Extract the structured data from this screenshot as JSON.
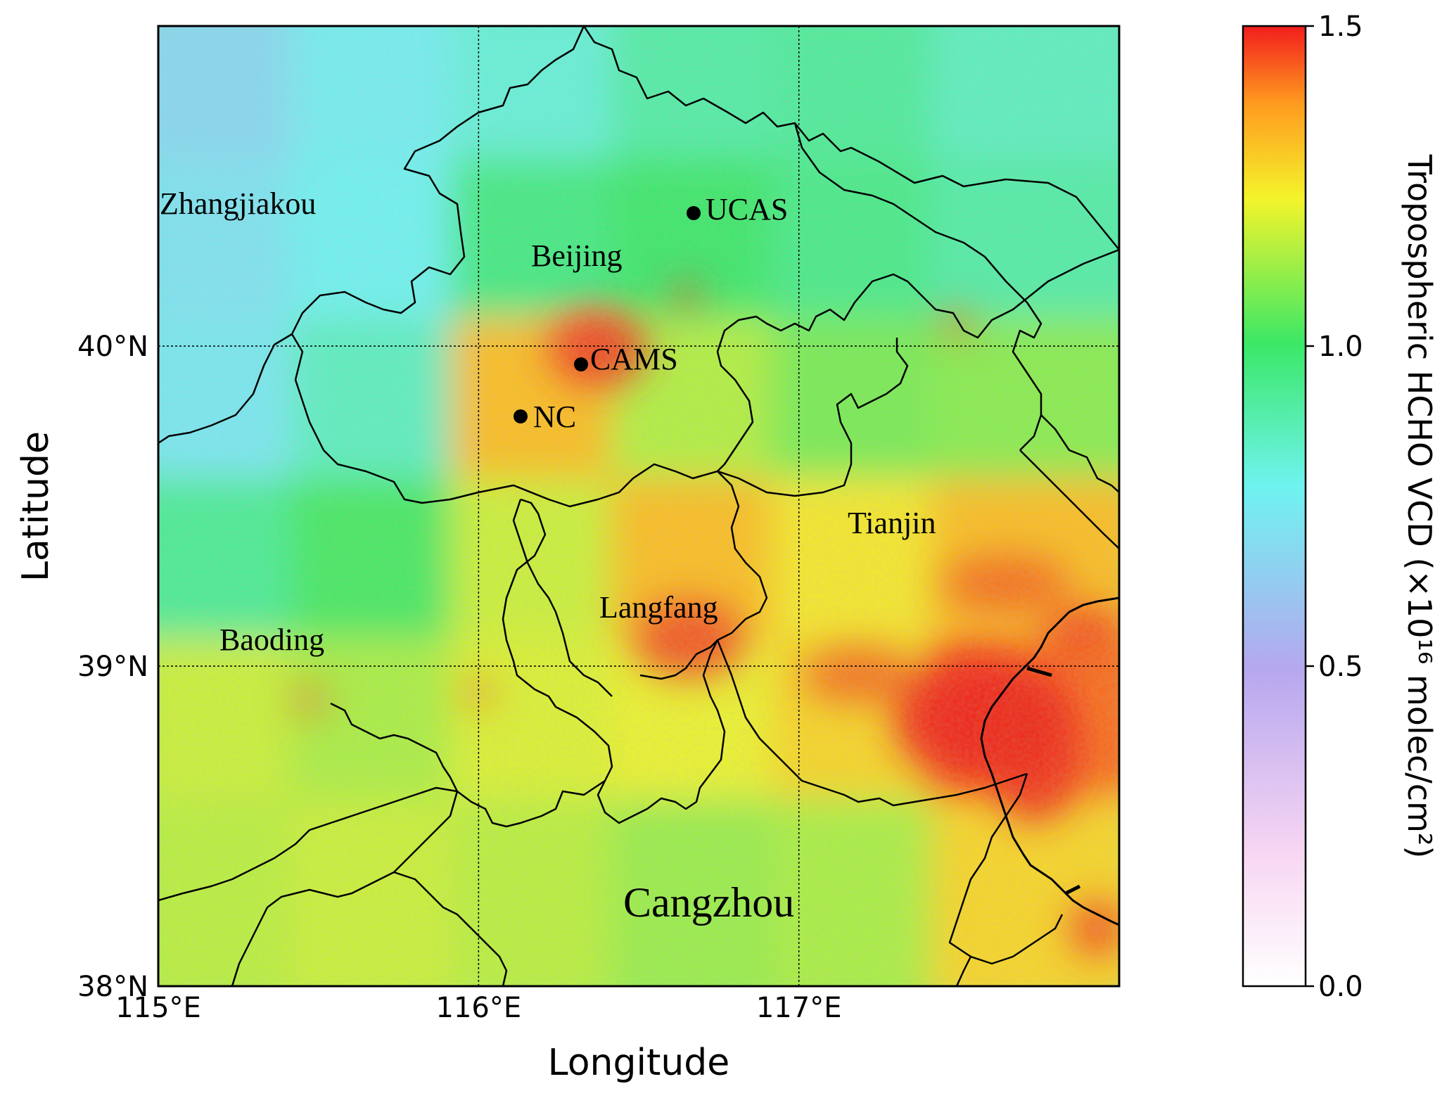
{
  "map": {
    "xlabel": "Longitude",
    "ylabel": "Latitude",
    "lon_ticks": [
      {
        "value": 115,
        "label": "115°E"
      },
      {
        "value": 116,
        "label": "116°E"
      },
      {
        "value": 117,
        "label": "117°E"
      }
    ],
    "lat_ticks": [
      {
        "value": 38,
        "label": "38°N"
      },
      {
        "value": 39,
        "label": "39°N"
      },
      {
        "value": 40,
        "label": "40°N"
      }
    ],
    "lon_range": [
      115,
      118
    ],
    "lat_range": [
      38,
      41
    ],
    "gridlines": true,
    "regions": [
      {
        "name": "Zhangjiakou",
        "lon": 115.0,
        "lat": 40.44
      },
      {
        "name": "Beijing",
        "lon": 116.17,
        "lat": 40.27
      },
      {
        "name": "Tianjin",
        "lon": 117.15,
        "lat": 39.44
      },
      {
        "name": "Langfang",
        "lon": 116.38,
        "lat": 39.17
      },
      {
        "name": "Baoding",
        "lon": 115.19,
        "lat": 39.07
      },
      {
        "name": "Cangzhou",
        "lon": 116.45,
        "lat": 38.23
      }
    ],
    "sites": [
      {
        "name": "UCAS",
        "lon": 116.67,
        "lat": 40.41
      },
      {
        "name": "CAMS",
        "lon": 116.32,
        "lat": 39.94
      },
      {
        "name": "NC",
        "lon": 116.13,
        "lat": 39.78
      }
    ]
  },
  "colorbar": {
    "title": "Tropospheric HCHO VCD (×10¹⁶ molec/cm²)",
    "min": 0.0,
    "max": 1.5,
    "ticks": [
      {
        "value": 0.0,
        "label": "0.0"
      },
      {
        "value": 0.5,
        "label": "0.5"
      },
      {
        "value": 1.0,
        "label": "1.0"
      },
      {
        "value": 1.5,
        "label": "1.5"
      }
    ],
    "colors": [
      "#ffffff",
      "#f7d6f2",
      "#b6a7ef",
      "#6ff3f0",
      "#3be866",
      "#f4f42b",
      "#ff9a1f",
      "#f21d1d"
    ]
  },
  "chart_data": {
    "type": "heatmap",
    "title": "",
    "xlabel": "Longitude",
    "ylabel": "Latitude",
    "xlim": [
      115,
      118
    ],
    "ylim": [
      38,
      41
    ],
    "colorbar_range": [
      0.0,
      1.5
    ],
    "colorbar_label": "Tropospheric HCHO VCD (×10¹⁶ molec/cm²)",
    "lon": [
      115.25,
      115.75,
      116.25,
      116.75,
      117.25,
      117.75
    ],
    "lat": [
      40.75,
      40.25,
      39.75,
      39.25,
      38.75,
      38.25
    ],
    "values": [
      [
        0.68,
        0.76,
        0.82,
        0.9,
        0.92,
        0.86
      ],
      [
        0.72,
        0.78,
        0.96,
        1.0,
        0.95,
        0.9
      ],
      [
        0.74,
        0.86,
        1.32,
        1.15,
        1.08,
        1.1
      ],
      [
        0.93,
        1.02,
        1.18,
        1.32,
        1.25,
        1.32
      ],
      [
        1.18,
        1.14,
        1.2,
        1.22,
        1.28,
        1.42
      ],
      [
        1.16,
        1.18,
        1.16,
        1.12,
        1.14,
        1.28
      ]
    ]
  }
}
